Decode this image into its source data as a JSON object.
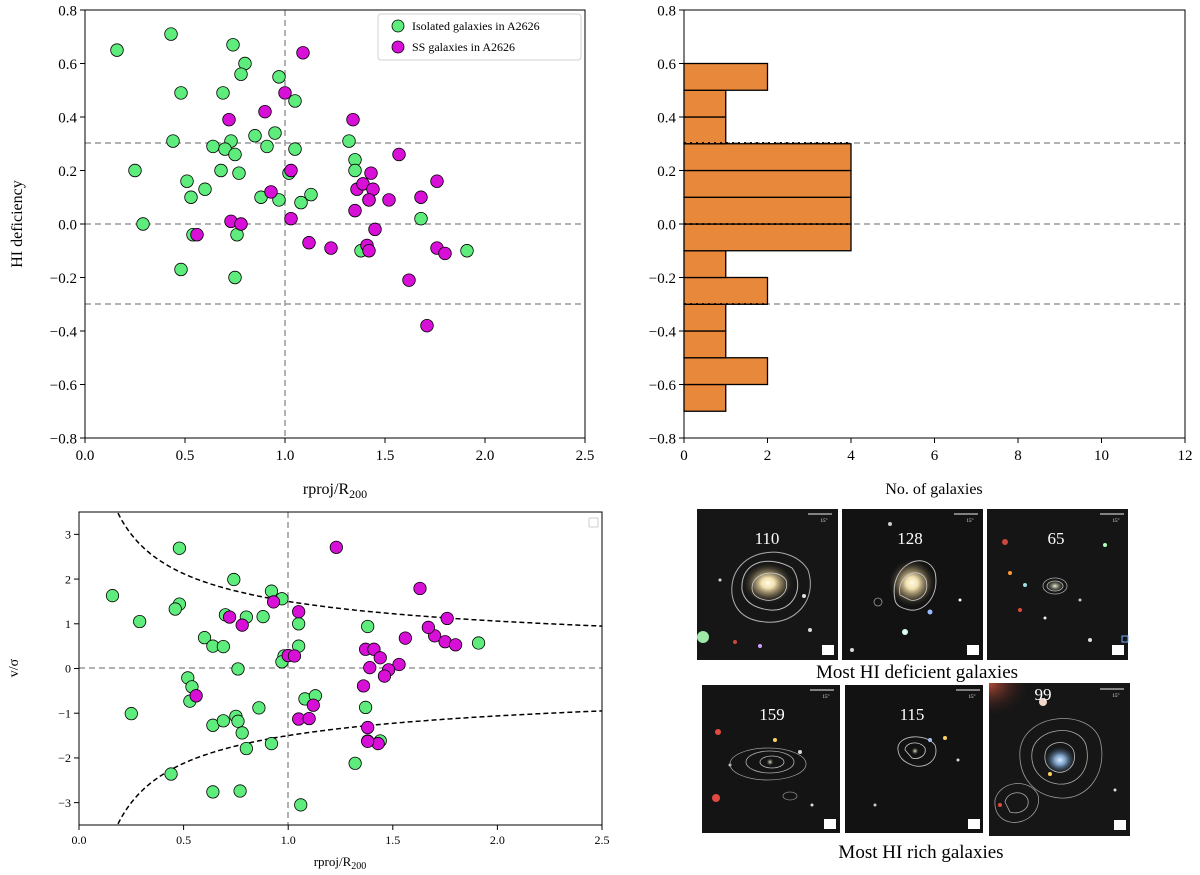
{
  "chart_data": [
    {
      "id": "scatter_hi",
      "type": "scatter",
      "xlabel": "rproj/R",
      "xlabel_sub": "200",
      "ylabel": "HI deficiency",
      "xlim": [
        0.0,
        2.5
      ],
      "ylim": [
        -0.8,
        0.8
      ],
      "xticks": [
        "0.0",
        "0.5",
        "1.0",
        "1.5",
        "2.0",
        "2.5"
      ],
      "yticks": [
        "−0.8",
        "−0.6",
        "−0.4",
        "−0.2",
        "0.0",
        "0.2",
        "0.4",
        "0.6",
        "0.8"
      ],
      "hlines": [
        0.3,
        0.0,
        -0.3
      ],
      "vlines": [
        1.0
      ],
      "legend": "top-right",
      "series": [
        {
          "name": "Isolated galaxies in A2626",
          "color": "#5eec7c",
          "points": [
            [
              0.16,
              0.65
            ],
            [
              0.43,
              0.71
            ],
            [
              0.74,
              0.67
            ],
            [
              0.8,
              0.6
            ],
            [
              0.78,
              0.56
            ],
            [
              0.97,
              0.55
            ],
            [
              0.48,
              0.49
            ],
            [
              0.69,
              0.49
            ],
            [
              1.05,
              0.46
            ],
            [
              0.44,
              0.31
            ],
            [
              0.73,
              0.31
            ],
            [
              0.85,
              0.33
            ],
            [
              0.95,
              0.34
            ],
            [
              0.91,
              0.29
            ],
            [
              0.64,
              0.29
            ],
            [
              0.7,
              0.28
            ],
            [
              0.75,
              0.26
            ],
            [
              1.05,
              0.28
            ],
            [
              1.32,
              0.31
            ],
            [
              1.35,
              0.24
            ],
            [
              1.35,
              0.2
            ],
            [
              0.25,
              0.2
            ],
            [
              0.68,
              0.2
            ],
            [
              0.77,
              0.19
            ],
            [
              0.51,
              0.16
            ],
            [
              0.6,
              0.13
            ],
            [
              1.02,
              0.19
            ],
            [
              0.53,
              0.1
            ],
            [
              0.88,
              0.1
            ],
            [
              0.97,
              0.09
            ],
            [
              1.08,
              0.08
            ],
            [
              1.13,
              0.11
            ],
            [
              1.42,
              0.09
            ],
            [
              0.29,
              0.0
            ],
            [
              0.76,
              -0.04
            ],
            [
              0.54,
              -0.04
            ],
            [
              1.38,
              -0.1
            ],
            [
              1.68,
              0.02
            ],
            [
              1.91,
              -0.1
            ],
            [
              0.48,
              -0.17
            ],
            [
              0.75,
              -0.2
            ]
          ]
        },
        {
          "name": "SS galaxies in A2626",
          "color": "#d70fd7",
          "points": [
            [
              1.09,
              0.64
            ],
            [
              1.0,
              0.49
            ],
            [
              0.9,
              0.42
            ],
            [
              0.72,
              0.39
            ],
            [
              1.34,
              0.39
            ],
            [
              1.57,
              0.26
            ],
            [
              1.03,
              0.2
            ],
            [
              1.43,
              0.19
            ],
            [
              1.76,
              0.16
            ],
            [
              0.93,
              0.12
            ],
            [
              1.36,
              0.13
            ],
            [
              1.39,
              0.15
            ],
            [
              1.44,
              0.13
            ],
            [
              1.42,
              0.09
            ],
            [
              1.52,
              0.09
            ],
            [
              1.68,
              0.1
            ],
            [
              1.35,
              0.05
            ],
            [
              1.03,
              0.02
            ],
            [
              0.73,
              0.01
            ],
            [
              0.78,
              0.0
            ],
            [
              1.45,
              -0.02
            ],
            [
              0.56,
              -0.04
            ],
            [
              1.12,
              -0.07
            ],
            [
              1.23,
              -0.09
            ],
            [
              1.41,
              -0.08
            ],
            [
              1.42,
              -0.1
            ],
            [
              1.76,
              -0.09
            ],
            [
              1.8,
              -0.11
            ],
            [
              1.62,
              -0.21
            ],
            [
              1.71,
              -0.38
            ]
          ]
        }
      ]
    },
    {
      "id": "histogram_hi",
      "type": "bar",
      "orientation": "horizontal",
      "xlabel": "No. of galaxies",
      "ylabel": "",
      "xlim": [
        0,
        12
      ],
      "ylim": [
        -0.8,
        0.8
      ],
      "xticks": [
        "0",
        "2",
        "4",
        "6",
        "8",
        "10",
        "12"
      ],
      "yticks": [
        "−0.8",
        "−0.6",
        "−0.4",
        "−0.2",
        "0.0",
        "0.2",
        "0.4",
        "0.6",
        "0.8"
      ],
      "hlines": [
        0.3,
        0.0,
        -0.3
      ],
      "color": "#e8883a",
      "bins": [
        {
          "low": -0.7,
          "high": -0.6,
          "count": 1
        },
        {
          "low": -0.6,
          "high": -0.5,
          "count": 2
        },
        {
          "low": -0.5,
          "high": -0.4,
          "count": 1
        },
        {
          "low": -0.4,
          "high": -0.3,
          "count": 1
        },
        {
          "low": -0.3,
          "high": -0.2,
          "count": 2
        },
        {
          "low": -0.2,
          "high": -0.1,
          "count": 1
        },
        {
          "low": -0.1,
          "high": 0.0,
          "count": 4
        },
        {
          "low": 0.0,
          "high": 0.1,
          "count": 4
        },
        {
          "low": 0.1,
          "high": 0.2,
          "count": 4
        },
        {
          "low": 0.2,
          "high": 0.3,
          "count": 4
        },
        {
          "low": 0.3,
          "high": 0.4,
          "count": 1
        },
        {
          "low": 0.4,
          "high": 0.5,
          "count": 1
        },
        {
          "low": 0.5,
          "high": 0.6,
          "count": 2
        }
      ]
    },
    {
      "id": "phase_space",
      "type": "scatter",
      "xlabel": "rproj/R",
      "xlabel_sub": "200",
      "ylabel": "v/σ",
      "xlim": [
        0.0,
        2.5
      ],
      "ylim": [
        -3.5,
        3.5
      ],
      "xticks": [
        "0.0",
        "0.5",
        "1.0",
        "1.5",
        "2.0",
        "2.5"
      ],
      "yticks": [
        "−3",
        "−2",
        "−1",
        "0",
        "1",
        "2",
        "3"
      ],
      "hlines": [
        0.0
      ],
      "vlines": [
        1.0
      ],
      "curve": {
        "form": "±1.5/sqrt(x)",
        "linestyle": "dashed"
      },
      "legend": "top-right (empty)",
      "series": [
        {
          "color": "#5eec7c",
          "points": [
            [
              0.48,
              2.69
            ],
            [
              0.74,
              1.99
            ],
            [
              0.16,
              1.63
            ],
            [
              0.48,
              1.44
            ],
            [
              0.46,
              1.33
            ],
            [
              0.29,
              1.05
            ],
            [
              0.92,
              1.73
            ],
            [
              0.97,
              1.56
            ],
            [
              0.7,
              1.2
            ],
            [
              0.8,
              1.15
            ],
            [
              0.88,
              1.16
            ],
            [
              0.6,
              0.69
            ],
            [
              0.64,
              0.5
            ],
            [
              0.69,
              0.49
            ],
            [
              0.98,
              0.28
            ],
            [
              0.97,
              0.15
            ],
            [
              1.05,
              1.0
            ],
            [
              1.05,
              0.5
            ],
            [
              1.38,
              0.94
            ],
            [
              1.91,
              0.57
            ],
            [
              0.52,
              -0.21
            ],
            [
              0.54,
              -0.41
            ],
            [
              0.53,
              -0.73
            ],
            [
              0.25,
              -1.01
            ],
            [
              0.76,
              -0.01
            ],
            [
              0.64,
              -1.27
            ],
            [
              0.69,
              -1.17
            ],
            [
              0.75,
              -1.07
            ],
            [
              0.76,
              -1.18
            ],
            [
              0.86,
              -0.88
            ],
            [
              0.78,
              -1.44
            ],
            [
              0.8,
              -1.79
            ],
            [
              0.92,
              -1.68
            ],
            [
              1.08,
              -0.68
            ],
            [
              1.13,
              -0.61
            ],
            [
              1.37,
              -0.87
            ],
            [
              1.38,
              -1.62
            ],
            [
              1.44,
              -1.62
            ],
            [
              1.32,
              -2.12
            ],
            [
              0.44,
              -2.36
            ],
            [
              0.64,
              -2.76
            ],
            [
              0.77,
              -2.74
            ],
            [
              1.06,
              -3.05
            ]
          ]
        },
        {
          "color": "#d70fd7",
          "points": [
            [
              1.23,
              2.71
            ],
            [
              1.63,
              1.79
            ],
            [
              1.05,
              1.27
            ],
            [
              0.93,
              1.49
            ],
            [
              0.72,
              1.15
            ],
            [
              0.78,
              0.97
            ],
            [
              1.0,
              0.29
            ],
            [
              1.03,
              0.28
            ],
            [
              1.37,
              0.43
            ],
            [
              1.41,
              0.43
            ],
            [
              1.44,
              0.24
            ],
            [
              1.39,
              0.02
            ],
            [
              1.53,
              0.09
            ],
            [
              1.48,
              -0.03
            ],
            [
              1.46,
              -0.17
            ],
            [
              1.56,
              0.68
            ],
            [
              1.7,
              0.73
            ],
            [
              1.75,
              0.6
            ],
            [
              1.8,
              0.53
            ],
            [
              1.67,
              0.92
            ],
            [
              1.76,
              1.12
            ],
            [
              0.56,
              -0.61
            ],
            [
              1.05,
              -1.13
            ],
            [
              1.12,
              -0.82
            ],
            [
              1.1,
              -1.12
            ],
            [
              1.36,
              -0.39
            ],
            [
              1.38,
              -1.32
            ],
            [
              1.43,
              -1.68
            ],
            [
              1.38,
              -1.63
            ]
          ]
        }
      ]
    }
  ],
  "panels": {
    "deficient_ids": [
      "110",
      "128",
      "65"
    ],
    "deficient_caption": "Most HI deficient galaxies",
    "rich_ids": [
      "159",
      "115",
      "99"
    ],
    "rich_caption": "Most HI rich galaxies",
    "scale_label": "15\""
  }
}
